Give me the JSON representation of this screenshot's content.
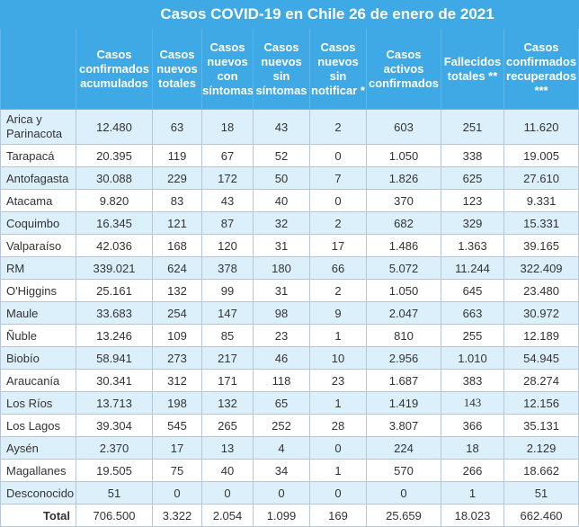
{
  "title": "Casos COVID-19 en Chile 26 de enero de 2021",
  "columns": [
    "Casos confirmados acumulados",
    "Casos nuevos totales",
    "Casos nuevos con síntomas",
    "Casos nuevos sin síntomas",
    "Casos nuevos sin notificar *",
    "Casos activos confirmados",
    "Fallecidos totales **",
    "Casos confirmados recuperados ***"
  ],
  "rows": [
    {
      "region": "Arica y Parinacota",
      "values": [
        "12.480",
        "63",
        "18",
        "43",
        "2",
        "603",
        "251",
        "11.620"
      ]
    },
    {
      "region": "Tarapacá",
      "values": [
        "20.395",
        "119",
        "67",
        "52",
        "0",
        "1.050",
        "338",
        "19.005"
      ]
    },
    {
      "region": "Antofagasta",
      "values": [
        "30.088",
        "229",
        "172",
        "50",
        "7",
        "1.826",
        "625",
        "27.610"
      ]
    },
    {
      "region": "Atacama",
      "values": [
        "9.820",
        "83",
        "43",
        "40",
        "0",
        "370",
        "123",
        "9.331"
      ]
    },
    {
      "region": "Coquimbo",
      "values": [
        "16.345",
        "121",
        "87",
        "32",
        "2",
        "682",
        "329",
        "15.331"
      ]
    },
    {
      "region": "Valparaíso",
      "values": [
        "42.036",
        "168",
        "120",
        "31",
        "17",
        "1.486",
        "1.363",
        "39.165"
      ]
    },
    {
      "region": "RM",
      "values": [
        "339.021",
        "624",
        "378",
        "180",
        "66",
        "5.072",
        "11.244",
        "322.409"
      ]
    },
    {
      "region": "O'Higgins",
      "values": [
        "25.161",
        "132",
        "99",
        "31",
        "2",
        "1.050",
        "645",
        "23.480"
      ]
    },
    {
      "region": "Maule",
      "values": [
        "33.683",
        "254",
        "147",
        "98",
        "9",
        "2.047",
        "663",
        "30.972"
      ]
    },
    {
      "region": "Ñuble",
      "values": [
        "13.246",
        "109",
        "85",
        "23",
        "1",
        "810",
        "255",
        "12.189"
      ]
    },
    {
      "region": "Biobío",
      "values": [
        "58.941",
        "273",
        "217",
        "46",
        "10",
        "2.956",
        "1.010",
        "54.945"
      ]
    },
    {
      "region": "Araucanía",
      "values": [
        "30.341",
        "312",
        "171",
        "118",
        "23",
        "1.687",
        "383",
        "28.274"
      ]
    },
    {
      "region": "Los Ríos",
      "values": [
        "13.713",
        "198",
        "132",
        "65",
        "1",
        "1.419",
        "143",
        "12.156"
      ]
    },
    {
      "region": "Los Lagos",
      "values": [
        "39.304",
        "545",
        "265",
        "252",
        "28",
        "3.807",
        "366",
        "35.131"
      ]
    },
    {
      "region": "Aysén",
      "values": [
        "2.370",
        "17",
        "13",
        "4",
        "0",
        "224",
        "18",
        "2.129"
      ]
    },
    {
      "region": "Magallanes",
      "values": [
        "19.505",
        "75",
        "40",
        "34",
        "1",
        "570",
        "266",
        "18.662"
      ]
    },
    {
      "region": "Desconocido",
      "values": [
        "51",
        "0",
        "0",
        "0",
        "0",
        "0",
        "1",
        "51"
      ]
    }
  ],
  "total": {
    "label": "Total",
    "values": [
      "706.500",
      "3.322",
      "2.054",
      "1.099",
      "169",
      "25.659",
      "18.023",
      "662.460"
    ]
  },
  "colors": {
    "header": "#3fa9e6",
    "alt_row": "#dcf0fb",
    "border": "#b7c6d6"
  }
}
